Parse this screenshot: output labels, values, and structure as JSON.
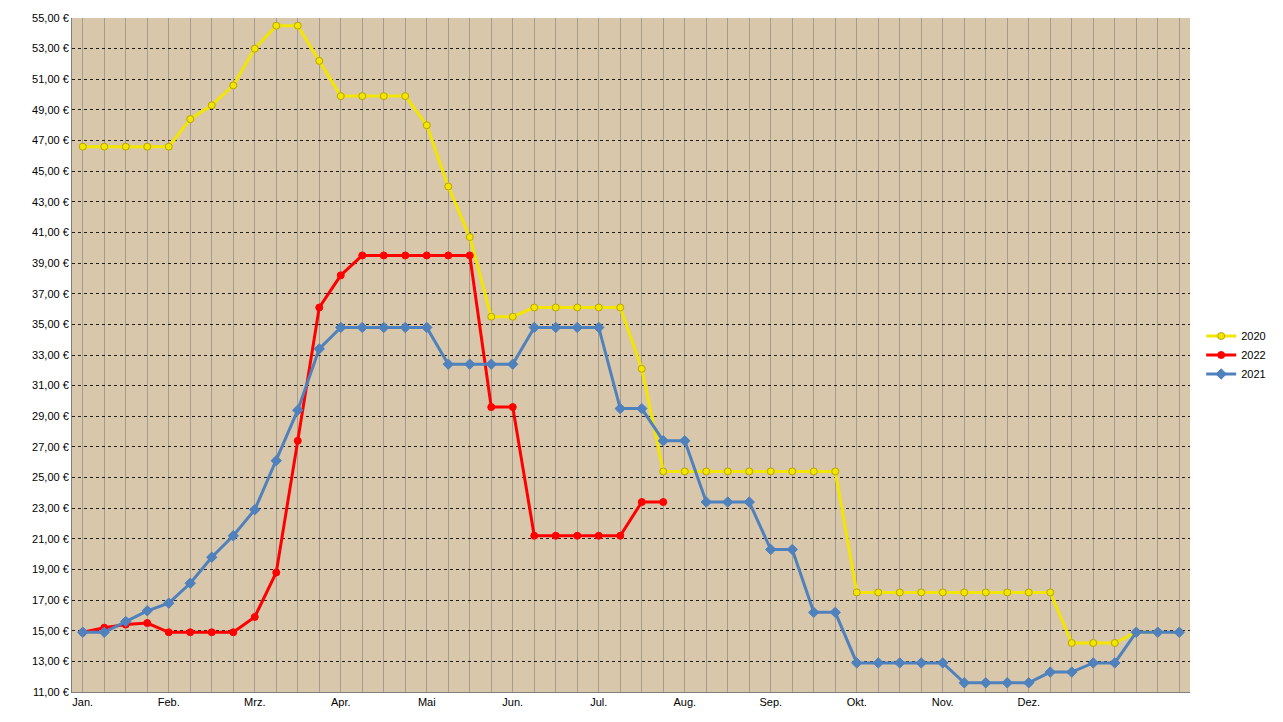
{
  "chart_data": {
    "type": "line",
    "categories": [
      "Jan.",
      null,
      null,
      null,
      "Feb.",
      null,
      null,
      null,
      "Mrz.",
      null,
      null,
      null,
      "Apr.",
      null,
      null,
      null,
      "Mai",
      null,
      null,
      null,
      "Jun.",
      null,
      null,
      null,
      "Jul.",
      null,
      null,
      null,
      "Aug.",
      null,
      null,
      null,
      "Sep.",
      null,
      null,
      null,
      "Okt.",
      null,
      null,
      null,
      "Nov.",
      null,
      null,
      null,
      "Dez.",
      null,
      null,
      null,
      null,
      null,
      null,
      null
    ],
    "series": [
      {
        "name": "2020",
        "color": "#f2e600",
        "marker": "circle",
        "values": [
          46.6,
          46.6,
          46.6,
          46.6,
          46.6,
          48.4,
          49.3,
          50.6,
          53.0,
          54.5,
          54.5,
          52.2,
          49.9,
          49.9,
          49.9,
          49.9,
          48.0,
          44.0,
          40.7,
          35.5,
          35.5,
          36.1,
          36.1,
          36.1,
          36.1,
          36.1,
          32.1,
          25.4,
          25.4,
          25.4,
          25.4,
          25.4,
          25.4,
          25.4,
          25.4,
          25.4,
          17.5,
          17.5,
          17.5,
          17.5,
          17.5,
          17.5,
          17.5,
          17.5,
          17.5,
          17.5,
          14.2,
          14.2,
          14.2,
          14.9,
          14.9,
          null
        ]
      },
      {
        "name": "2022",
        "color": "#ff0000",
        "marker": "circle",
        "values": [
          14.9,
          15.2,
          15.4,
          15.5,
          14.9,
          14.9,
          14.9,
          14.9,
          15.9,
          18.8,
          27.4,
          36.1,
          38.2,
          39.5,
          39.5,
          39.5,
          39.5,
          39.5,
          39.5,
          29.6,
          29.6,
          21.2,
          21.2,
          21.2,
          21.2,
          21.2,
          23.4,
          23.4,
          null,
          null,
          null,
          null,
          null,
          null,
          null,
          null,
          null,
          null,
          null,
          null,
          null,
          null,
          null,
          null,
          null,
          null,
          null,
          null,
          null,
          null,
          null,
          null
        ]
      },
      {
        "name": "2021",
        "color": "#4f81bd",
        "marker": "diamond",
        "values": [
          14.9,
          14.9,
          15.6,
          16.3,
          16.8,
          18.1,
          19.8,
          21.2,
          22.9,
          26.1,
          29.4,
          33.4,
          34.8,
          34.8,
          34.8,
          34.8,
          34.8,
          32.4,
          32.4,
          32.4,
          32.4,
          34.8,
          34.8,
          34.8,
          34.8,
          29.5,
          29.5,
          27.4,
          27.4,
          23.4,
          23.4,
          23.4,
          20.3,
          20.3,
          16.2,
          16.2,
          12.9,
          12.9,
          12.9,
          12.9,
          12.9,
          11.6,
          11.6,
          11.6,
          11.6,
          12.3,
          12.3,
          12.9,
          12.9,
          14.9,
          14.9,
          14.9
        ]
      }
    ],
    "ylim": [
      11,
      55
    ],
    "yticks": [
      {
        "value": 11,
        "label": "11,00 €"
      },
      {
        "value": 13,
        "label": "13,00 €"
      },
      {
        "value": 15,
        "label": "15,00 €"
      },
      {
        "value": 17,
        "label": "17,00 €"
      },
      {
        "value": 19,
        "label": "19,00 €"
      },
      {
        "value": 21,
        "label": "21,00 €"
      },
      {
        "value": 23,
        "label": "23,00 €"
      },
      {
        "value": 25,
        "label": "25,00 €"
      },
      {
        "value": 27,
        "label": "27,00 €"
      },
      {
        "value": 29,
        "label": "29,00 €"
      },
      {
        "value": 31,
        "label": "31,00 €"
      },
      {
        "value": 33,
        "label": "33,00 €"
      },
      {
        "value": 35,
        "label": "35,00 €"
      },
      {
        "value": 37,
        "label": "37,00 €"
      },
      {
        "value": 39,
        "label": "39,00 €"
      },
      {
        "value": 41,
        "label": "41,00 €"
      },
      {
        "value": 43,
        "label": "43,00 €"
      },
      {
        "value": 45,
        "label": "45,00 €"
      },
      {
        "value": 47,
        "label": "47,00 €"
      },
      {
        "value": 49,
        "label": "49,00 €"
      },
      {
        "value": 51,
        "label": "51,00 €"
      },
      {
        "value": 53,
        "label": "53,00 €"
      },
      {
        "value": 55,
        "label": "55,00 €"
      }
    ],
    "grid": true,
    "legend": "right"
  }
}
